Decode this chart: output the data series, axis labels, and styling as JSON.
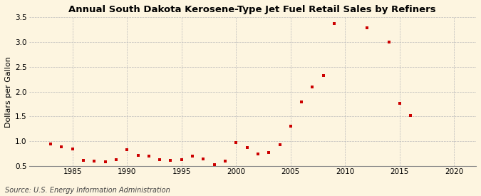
{
  "title": "Annual South Dakota Kerosene-Type Jet Fuel Retail Sales by Refiners",
  "ylabel": "Dollars per Gallon",
  "source": "Source: U.S. Energy Information Administration",
  "xlim": [
    1981,
    2022
  ],
  "ylim": [
    0.5,
    3.5
  ],
  "xticks": [
    1985,
    1990,
    1995,
    2000,
    2005,
    2010,
    2015,
    2020
  ],
  "yticks": [
    0.5,
    1.0,
    1.5,
    2.0,
    2.5,
    3.0,
    3.5
  ],
  "background_color": "#fdf5e0",
  "marker_color": "#cc0000",
  "data": [
    [
      1983,
      0.95
    ],
    [
      1984,
      0.89
    ],
    [
      1985,
      0.85
    ],
    [
      1986,
      0.62
    ],
    [
      1987,
      0.6
    ],
    [
      1988,
      0.59
    ],
    [
      1989,
      0.63
    ],
    [
      1990,
      0.84
    ],
    [
      1991,
      0.72
    ],
    [
      1992,
      0.7
    ],
    [
      1993,
      0.63
    ],
    [
      1994,
      0.62
    ],
    [
      1995,
      0.63
    ],
    [
      1996,
      0.7
    ],
    [
      1997,
      0.65
    ],
    [
      1998,
      0.53
    ],
    [
      1999,
      0.61
    ],
    [
      2000,
      0.98
    ],
    [
      2001,
      0.88
    ],
    [
      2002,
      0.75
    ],
    [
      2003,
      0.78
    ],
    [
      2004,
      0.93
    ],
    [
      2005,
      1.3
    ],
    [
      2006,
      1.8
    ],
    [
      2007,
      2.09
    ],
    [
      2008,
      2.32
    ],
    [
      2009,
      3.37
    ],
    [
      2012,
      3.28
    ],
    [
      2014,
      2.99
    ],
    [
      2015,
      1.77
    ],
    [
      2016,
      1.52
    ]
  ],
  "title_fontsize": 9.5,
  "axis_fontsize": 8,
  "tick_fontsize": 7.5,
  "source_fontsize": 7
}
